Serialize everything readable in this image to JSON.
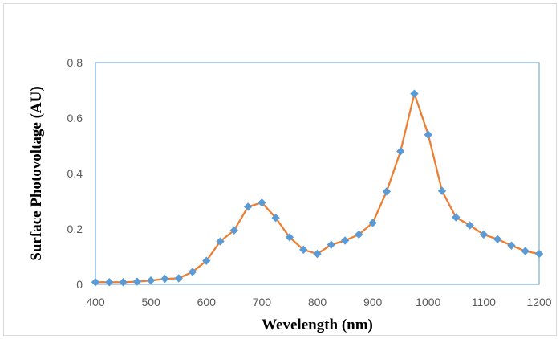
{
  "chart_data": {
    "type": "line",
    "title": "",
    "xlabel": "Wevelength (nm)",
    "ylabel": "Surface Photovoltage (AU)",
    "xlim": [
      400,
      1200
    ],
    "ylim": [
      0,
      0.8
    ],
    "x_ticks": [
      "400",
      "500",
      "600",
      "700",
      "800",
      "900",
      "1000",
      "1100",
      "1200"
    ],
    "y_ticks": [
      "0",
      "0.2",
      "0.4",
      "0.6",
      "0.8"
    ],
    "grid": false,
    "legend": "none",
    "line_color": "#ED7D31",
    "marker_color": "#5B9BD5",
    "marker_shape": "diamond",
    "frame_color": "#5B9BD5",
    "series": [
      {
        "x": [
          400,
          425,
          450,
          475,
          500,
          525,
          550,
          575,
          600,
          625,
          650,
          675,
          700,
          725,
          750,
          775,
          800,
          825,
          850,
          875,
          900,
          925,
          950,
          975,
          1000,
          1025,
          1050,
          1075,
          1100,
          1125,
          1150,
          1175,
          1200
        ],
        "y": [
          0.008,
          0.008,
          0.008,
          0.01,
          0.014,
          0.02,
          0.022,
          0.045,
          0.085,
          0.155,
          0.195,
          0.28,
          0.295,
          0.24,
          0.17,
          0.125,
          0.11,
          0.143,
          0.158,
          0.18,
          0.222,
          0.335,
          0.48,
          0.688,
          0.54,
          0.337,
          0.242,
          0.213,
          0.18,
          0.163,
          0.14,
          0.12,
          0.11
        ]
      }
    ]
  }
}
